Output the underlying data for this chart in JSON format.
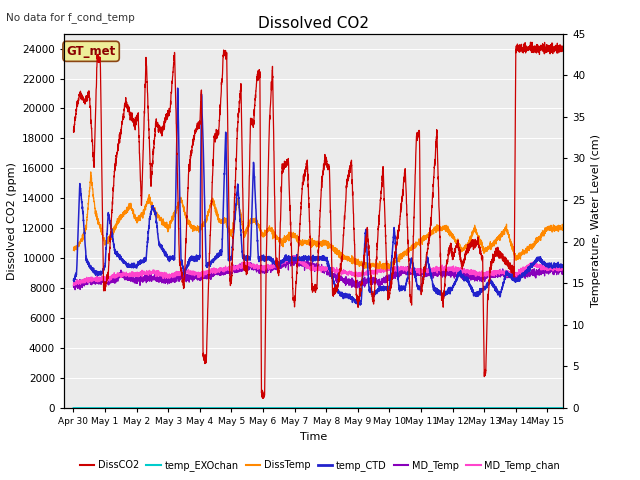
{
  "title": "Dissolved CO2",
  "top_left_text": "No data for f_cond_temp",
  "xlabel": "Time",
  "ylabel_left": "Dissolved CO2 (ppm)",
  "ylabel_right": "Temperature, Water Level (cm)",
  "ylim_left": [
    0,
    25000
  ],
  "ylim_right": [
    0,
    45
  ],
  "xlim_left": -0.3,
  "xlim_right": 15.5,
  "yticks_left": [
    0,
    2000,
    4000,
    6000,
    8000,
    10000,
    12000,
    14000,
    16000,
    18000,
    20000,
    22000,
    24000
  ],
  "yticks_right": [
    0,
    5,
    10,
    15,
    20,
    25,
    30,
    35,
    40,
    45
  ],
  "xtick_labels": [
    "Apr 30",
    "May 1",
    "May 2",
    "May 3",
    "May 4",
    "May 5",
    "May 6",
    "May 7",
    "May 8",
    "May 9",
    "May 10",
    "May 11",
    "May 12",
    "May 13",
    "May 14",
    "May 15"
  ],
  "xtick_positions": [
    0,
    1,
    2,
    3,
    4,
    5,
    6,
    7,
    8,
    9,
    10,
    11,
    12,
    13,
    14,
    15
  ],
  "bg_color": "#ebebeb",
  "grid_color": "#ffffff",
  "colors": {
    "DissCO2": "#cc0000",
    "temp_EXOchan": "#00cccc",
    "DissTemp": "#ff8800",
    "temp_CTD": "#2222cc",
    "MD_Temp": "#8800bb",
    "MD_Temp_chan": "#ff44cc"
  },
  "gt_met": {
    "text": "GT_met",
    "facecolor": "#eeee99",
    "edgecolor": "#8b4513"
  }
}
